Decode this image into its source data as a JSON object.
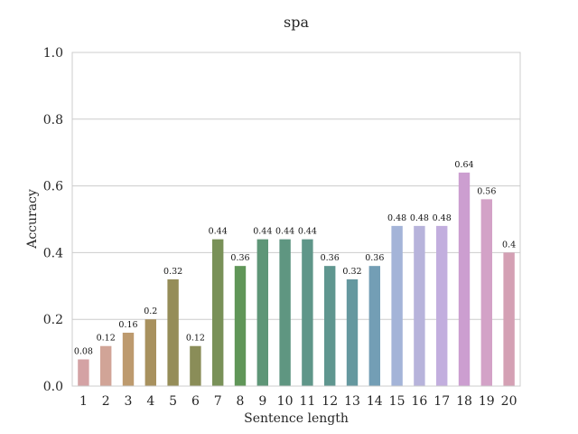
{
  "chart_data": {
    "type": "bar",
    "title": "spa",
    "xlabel": "Sentence length",
    "ylabel": "Accuracy",
    "ylim": [
      0,
      1.0
    ],
    "yticks": [
      "0.0",
      "0.2",
      "0.4",
      "0.6",
      "0.8",
      "1.0"
    ],
    "grid": true,
    "categories": [
      "1",
      "2",
      "3",
      "4",
      "5",
      "6",
      "7",
      "8",
      "9",
      "10",
      "11",
      "12",
      "13",
      "14",
      "15",
      "16",
      "17",
      "18",
      "19",
      "20"
    ],
    "values": [
      0.08,
      0.12,
      0.16,
      0.2,
      0.32,
      0.12,
      0.44,
      0.36,
      0.44,
      0.44,
      0.44,
      0.36,
      0.32,
      0.36,
      0.48,
      0.48,
      0.48,
      0.64,
      0.56,
      0.4
    ],
    "value_labels": [
      "0.08",
      "0.12",
      "0.16",
      "0.2",
      "0.32",
      "0.12",
      "0.44",
      "0.36",
      "0.44",
      "0.44",
      "0.44",
      "0.36",
      "0.32",
      "0.36",
      "0.48",
      "0.48",
      "0.48",
      "0.64",
      "0.56",
      "0.4"
    ],
    "colors": [
      "#d4a2a4",
      "#d1a497",
      "#bd9a6e",
      "#a8915e",
      "#958d58",
      "#8a8d58",
      "#799158",
      "#609658",
      "#5e9677",
      "#5f9681",
      "#5f9689",
      "#5f968f",
      "#65989f",
      "#739eb5",
      "#a4b4d8",
      "#b7b3db",
      "#c2aede",
      "#cc9ed0",
      "#d3a2c7",
      "#d4a0b4"
    ]
  }
}
